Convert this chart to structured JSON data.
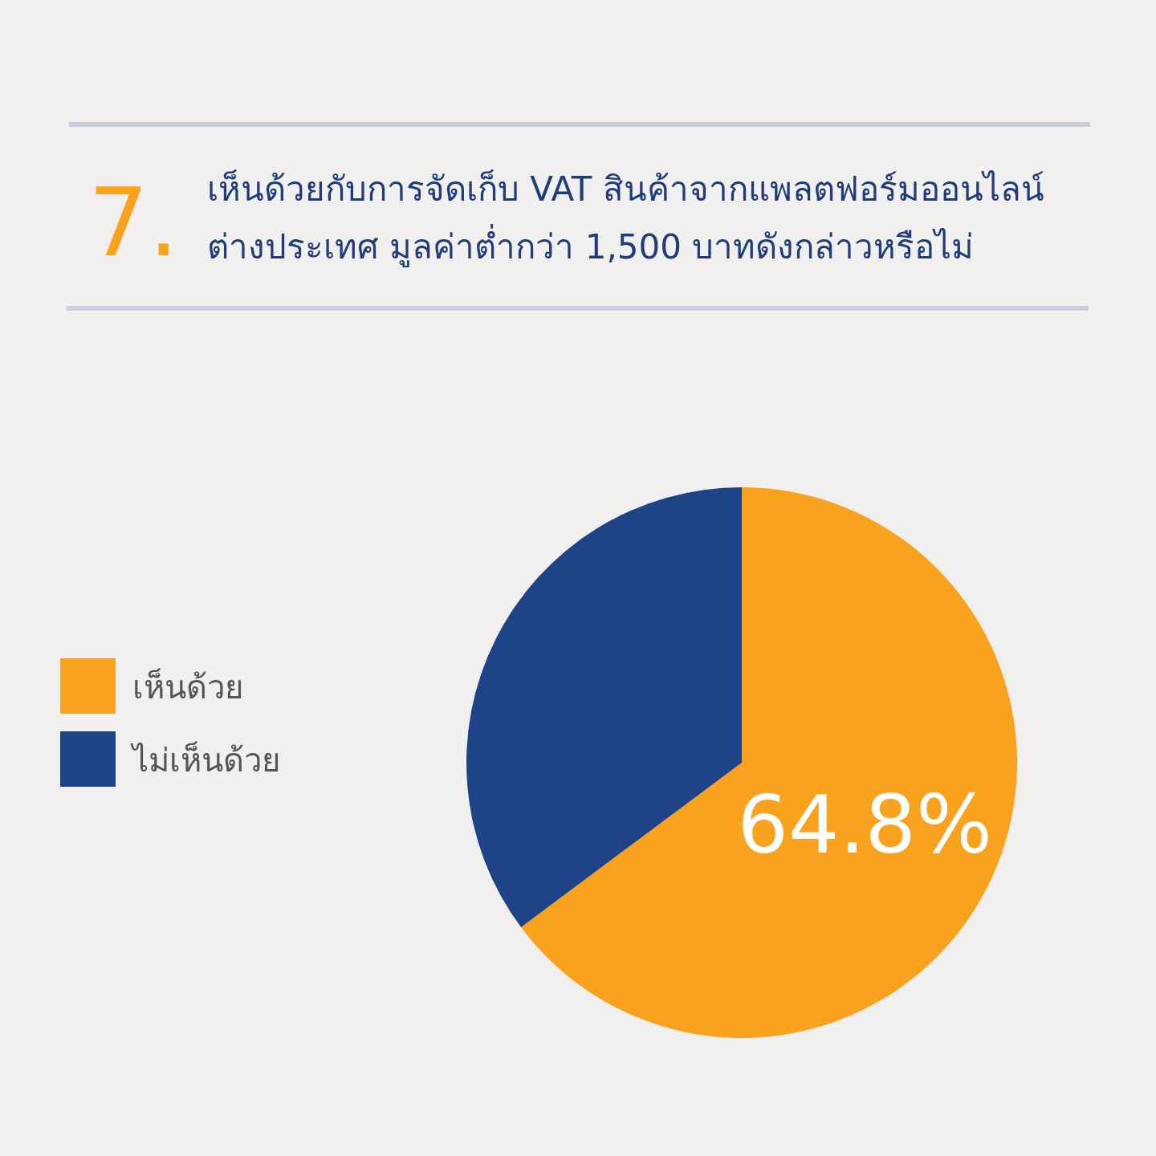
{
  "chart_data": {
    "type": "pie",
    "title": "เห็นด้วยกับการจัดเก็บ VAT สินค้าจากแพลตฟอร์มออนไลน์ต่างประเทศ มูลค่าต่ำกว่า 1,500 บาทดังกล่าวหรือไม่",
    "annotations": [
      "7."
    ],
    "categories": [
      "เห็นด้วย",
      "ไม่เห็นด้วย"
    ],
    "values": [
      64.8,
      35.2
    ],
    "colors": [
      "#f8a21e",
      "#1f4387"
    ],
    "value_labels": [
      "64.8%",
      null
    ],
    "legend": "left"
  }
}
